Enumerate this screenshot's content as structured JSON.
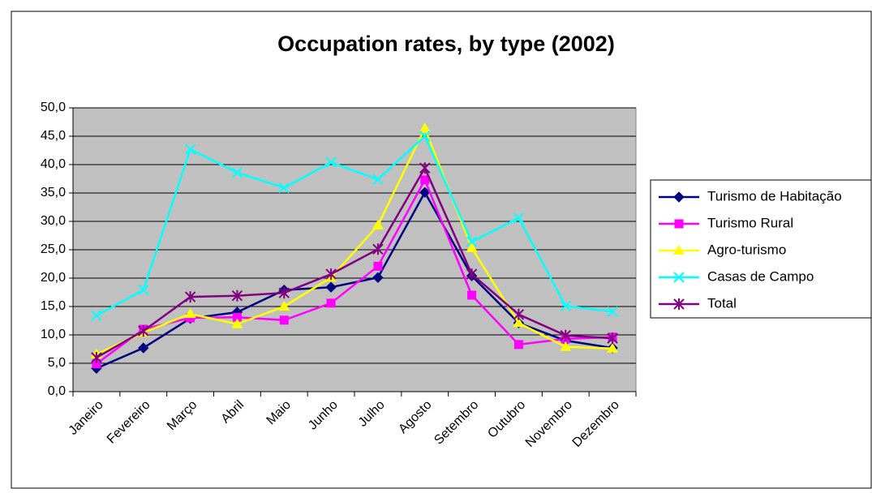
{
  "chart_data": {
    "type": "line",
    "title": "Occupation rates, by type (2002)",
    "categories": [
      "Janeiro",
      "Fevereiro",
      "Março",
      "Abril",
      "Maio",
      "Junho",
      "Julho",
      "Agosto",
      "Setembro",
      "Outubro",
      "Novembro",
      "Dezembro"
    ],
    "series": [
      {
        "name": "Turismo de Habitação",
        "color": "#000080",
        "marker": "diamond",
        "values": [
          4.1,
          7.7,
          12.9,
          14.0,
          17.9,
          18.4,
          20.1,
          35.1,
          20.4,
          12.1,
          9.0,
          7.7
        ]
      },
      {
        "name": "Turismo Rural",
        "color": "#ff00ff",
        "marker": "square",
        "values": [
          4.9,
          11.0,
          13.0,
          13.1,
          12.6,
          15.6,
          22.1,
          37.3,
          17.0,
          8.3,
          9.3,
          9.6
        ]
      },
      {
        "name": "Agro-turismo",
        "color": "#ffff00",
        "marker": "triangle",
        "values": [
          6.6,
          10.4,
          13.7,
          11.9,
          15.0,
          20.1,
          29.3,
          46.4,
          25.3,
          12.1,
          7.9,
          7.6
        ]
      },
      {
        "name": "Casas de Campo",
        "color": "#00ffff",
        "marker": "x",
        "values": [
          13.4,
          17.9,
          42.7,
          38.6,
          35.9,
          40.4,
          37.4,
          45.0,
          26.4,
          30.6,
          15.1,
          14.1
        ]
      },
      {
        "name": "Total",
        "color": "#800080",
        "marker": "asterisk",
        "values": [
          6.0,
          10.7,
          16.7,
          16.9,
          17.4,
          20.7,
          25.1,
          39.4,
          20.7,
          13.6,
          9.9,
          9.4
        ]
      }
    ],
    "ylim": [
      0,
      50
    ],
    "yticks": [
      {
        "value": 0,
        "label": "0,0"
      },
      {
        "value": 5,
        "label": "5,0"
      },
      {
        "value": 10,
        "label": "10,0"
      },
      {
        "value": 15,
        "label": "15,0"
      },
      {
        "value": 20,
        "label": "20,0"
      },
      {
        "value": 25,
        "label": "25,0"
      },
      {
        "value": 30,
        "label": "30,0"
      },
      {
        "value": 35,
        "label": "35,0"
      },
      {
        "value": 40,
        "label": "40,0"
      },
      {
        "value": 45,
        "label": "45,0"
      },
      {
        "value": 50,
        "label": "50,0"
      }
    ],
    "grid": true,
    "legend": "right",
    "plot_background": "#c0c0c0"
  }
}
